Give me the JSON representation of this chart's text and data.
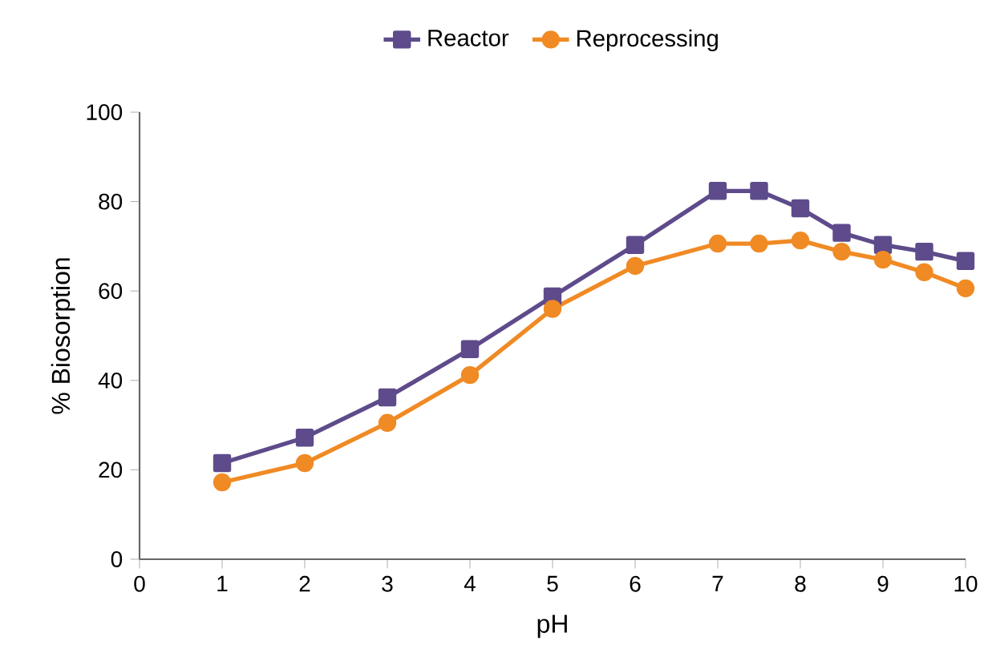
{
  "chart_data": {
    "type": "line",
    "xlabel": "pH",
    "ylabel": "% Biosorption",
    "x": [
      1,
      2,
      3,
      4,
      5,
      6,
      7,
      7.5,
      8,
      8.5,
      9,
      9.5,
      10
    ],
    "series": [
      {
        "name": "Reactor",
        "color": "#5e4b8b",
        "marker": "square",
        "values": [
          21.5,
          27.2,
          36.2,
          47,
          58.8,
          70.3,
          82.4,
          82.4,
          78.5,
          73,
          70.3,
          68.8,
          66.7
        ]
      },
      {
        "name": "Reprocessing",
        "color": "#f08a24",
        "marker": "circle",
        "values": [
          17.2,
          21.5,
          30.5,
          41.2,
          56,
          65.6,
          70.6,
          70.6,
          71.3,
          68.8,
          67,
          64.2,
          60.6
        ]
      }
    ],
    "xlim": [
      0,
      10
    ],
    "xticks": [
      0,
      1,
      2,
      3,
      4,
      5,
      6,
      7,
      8,
      9,
      10
    ],
    "ylim": [
      0,
      100
    ],
    "yticks": [
      0,
      20,
      40,
      60,
      80,
      100
    ],
    "grid": false,
    "legend": "top",
    "line_style": "solid"
  }
}
